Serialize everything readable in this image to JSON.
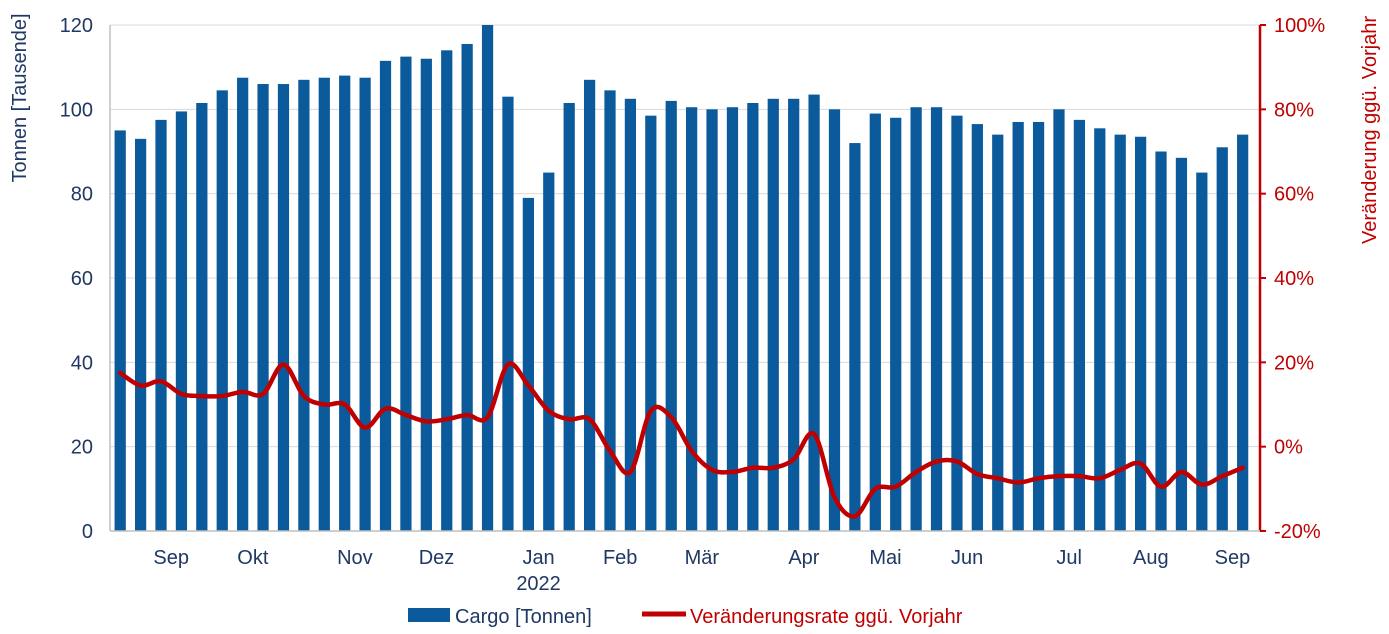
{
  "chart_data": {
    "type": "bar+line",
    "colors": {
      "bars": "#0a5a9c",
      "line": "#c00000",
      "grid": "#d9d9d9",
      "left_text": "#1f3864",
      "right_text": "#c00000"
    },
    "left_axis": {
      "label": "Tonnen [Tausende]",
      "ylim": [
        0,
        120
      ],
      "ticks": [
        "0",
        "20",
        "40",
        "60",
        "80",
        "100",
        "120"
      ]
    },
    "right_axis": {
      "label": "Veränderung ggü. Vorjahr",
      "ylim": [
        -20,
        100
      ],
      "ticks": [
        "-20%",
        "0%",
        "20%",
        "40%",
        "60%",
        "80%",
        "100%"
      ]
    },
    "x_labels": [
      {
        "label": "Sep",
        "index": 2.5
      },
      {
        "label": "Okt",
        "index": 6.5
      },
      {
        "label": "Nov",
        "index": 11.5
      },
      {
        "label": "Dez",
        "index": 15.5
      },
      {
        "label": "Jan",
        "index": 20.5
      },
      {
        "label": "Feb",
        "index": 24.5
      },
      {
        "label": "Mär",
        "index": 28.5
      },
      {
        "label": "Apr",
        "index": 33.5
      },
      {
        "label": "Mai",
        "index": 37.5
      },
      {
        "label": "Jun",
        "index": 41.5
      },
      {
        "label": "Jul",
        "index": 46.5
      },
      {
        "label": "Aug",
        "index": 50.5
      },
      {
        "label": "Sep",
        "index": 54.5
      }
    ],
    "year_label": {
      "label": "2022",
      "index": 20.5
    },
    "series": [
      {
        "name": "Cargo [Tonnen]",
        "type": "bar",
        "axis": "left",
        "values": [
          95,
          93,
          97.5,
          99.5,
          101.5,
          104.5,
          107.5,
          106,
          106,
          107,
          107.5,
          108,
          107.5,
          111.5,
          112.5,
          112,
          114,
          115.5,
          120,
          103,
          79,
          85,
          101.5,
          107,
          104.5,
          102.5,
          98.5,
          102,
          100.5,
          100,
          100.5,
          101.5,
          102.5,
          102.5,
          103.5,
          100,
          92,
          99,
          98,
          100.5,
          100.5,
          98.5,
          96.5,
          94,
          97,
          97,
          100,
          97.5,
          95.5,
          94,
          93.5,
          90,
          88.5,
          85,
          91,
          94
        ]
      },
      {
        "name": "Veränderungsrate ggü. Vorjahr",
        "type": "line",
        "axis": "right",
        "values": [
          17.5,
          14.5,
          15.5,
          12.5,
          12,
          12,
          13,
          12.5,
          19.5,
          12,
          10,
          10,
          4.5,
          9,
          7.5,
          6,
          6.5,
          7.5,
          7,
          19.5,
          14.5,
          8.5,
          6.5,
          6.5,
          -1,
          -6,
          8.5,
          7,
          -1,
          -5.5,
          -6,
          -5,
          -5,
          -3,
          3,
          -12,
          -16.5,
          -10,
          -9.5,
          -6,
          -3.5,
          -3.5,
          -6.5,
          -7.5,
          -8.5,
          -7.5,
          -7,
          -7,
          -7.5,
          -5.5,
          -4,
          -9.5,
          -6,
          -9,
          -7,
          -5
        ]
      }
    ],
    "legend": [
      {
        "label": "Cargo [Tonnen]",
        "kind": "bar"
      },
      {
        "label": "Veränderungsrate ggü. Vorjahr",
        "kind": "line"
      }
    ]
  }
}
